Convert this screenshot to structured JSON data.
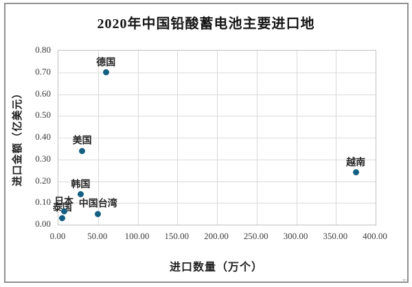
{
  "artifacts": {
    "corner_glyph": "←"
  },
  "chart_data": {
    "type": "scatter",
    "title": "2020年中国铅酸蓄电池主要进口地",
    "xlabel": "进口数量（万个）",
    "ylabel": "进口金额（亿美元）",
    "xlim": [
      0,
      400
    ],
    "ylim": [
      0,
      0.8
    ],
    "x_ticks": [
      "0.00",
      "50.00",
      "100.00",
      "150.00",
      "200.00",
      "250.00",
      "300.00",
      "350.00",
      "400.00"
    ],
    "y_ticks": [
      "0.00",
      "0.10",
      "0.20",
      "0.30",
      "0.40",
      "0.50",
      "0.60",
      "0.70",
      "0.80"
    ],
    "grid": true,
    "legend": "none",
    "marker_color": "#156082",
    "points": [
      {
        "label": "泰国",
        "x": 5,
        "y": 0.03
      },
      {
        "label": "日本",
        "x": 7,
        "y": 0.06
      },
      {
        "label": "韩国",
        "x": 28,
        "y": 0.14
      },
      {
        "label": "美国",
        "x": 30,
        "y": 0.34
      },
      {
        "label": "中国台湾",
        "x": 50,
        "y": 0.05
      },
      {
        "label": "德国",
        "x": 60,
        "y": 0.7
      },
      {
        "label": "越南",
        "x": 375,
        "y": 0.24
      }
    ]
  }
}
